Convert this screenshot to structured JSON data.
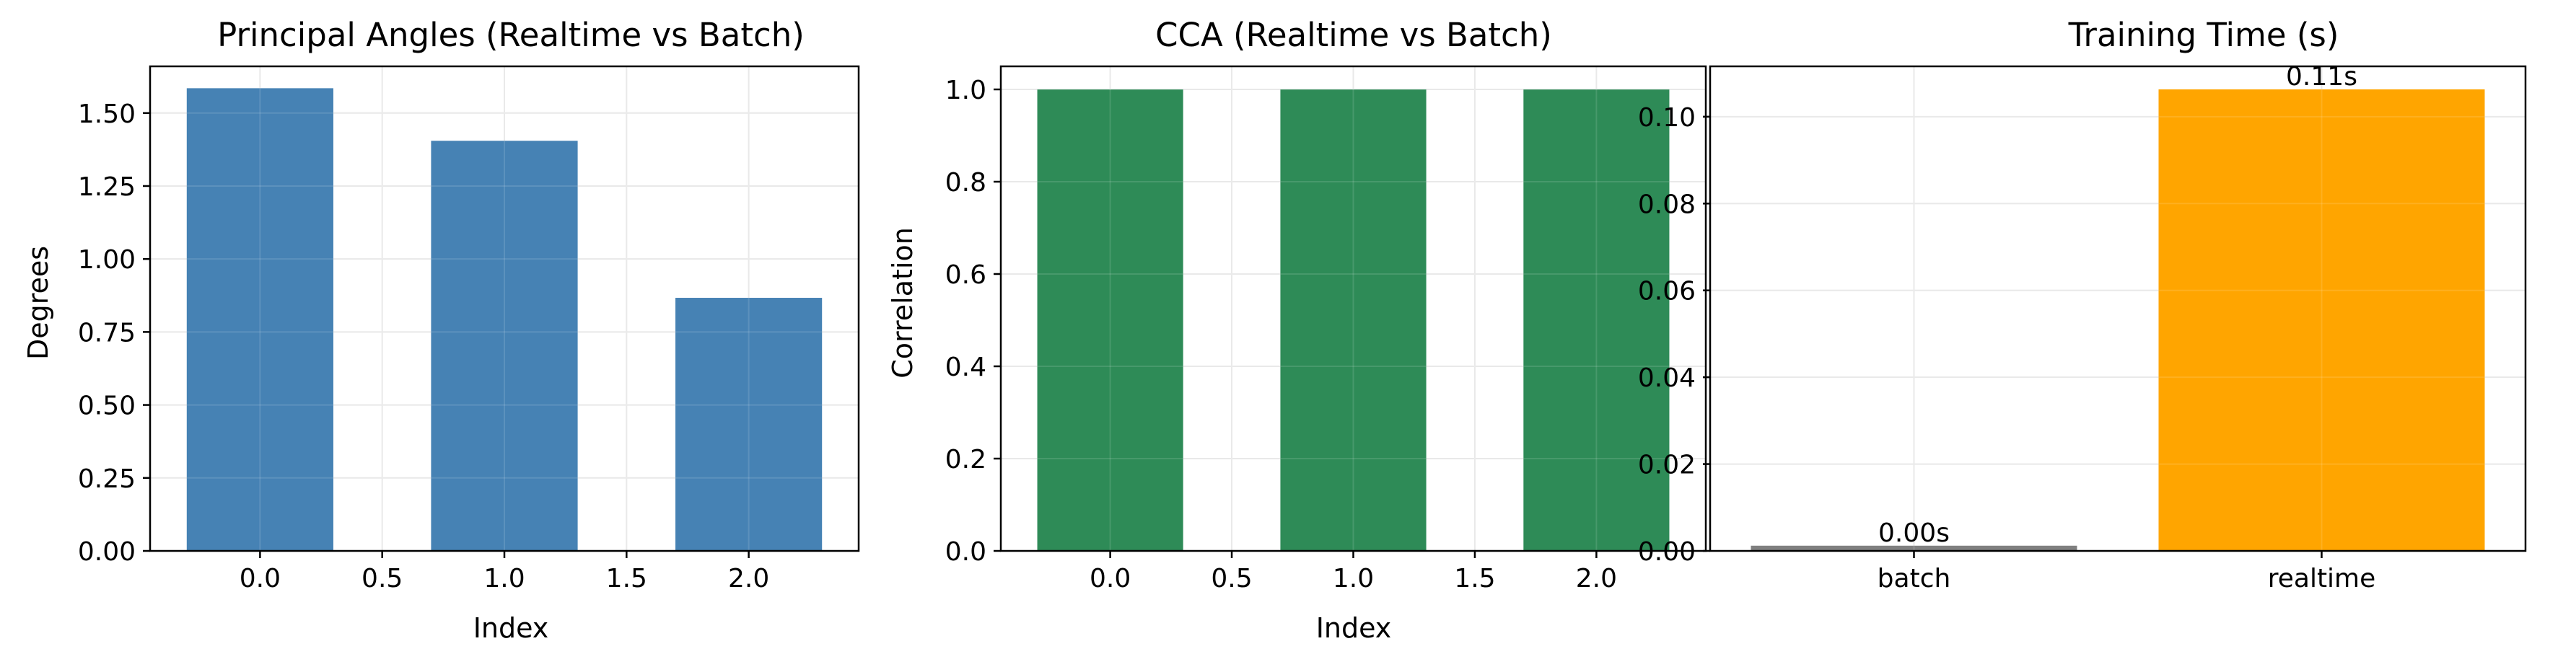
{
  "figure": {
    "background": "#ffffff"
  },
  "chart_data": [
    {
      "type": "bar",
      "title": "Principal Angles (Realtime vs Batch)",
      "xlabel": "Index",
      "ylabel": "Degrees",
      "x": [
        0,
        1,
        2
      ],
      "values": [
        1.585,
        1.405,
        0.867
      ],
      "bar_width": 0.6,
      "color": "#4682b4",
      "xlim": [
        -0.45,
        2.45
      ],
      "ylim": [
        0,
        1.66
      ],
      "xticks": [
        0.0,
        0.5,
        1.0,
        1.5,
        2.0
      ],
      "xtick_labels": [
        "0.0",
        "0.5",
        "1.0",
        "1.5",
        "2.0"
      ],
      "yticks": [
        0.0,
        0.25,
        0.5,
        0.75,
        1.0,
        1.25,
        1.5
      ],
      "ytick_labels": [
        "0.00",
        "0.25",
        "0.50",
        "0.75",
        "1.00",
        "1.25",
        "1.50"
      ],
      "grid": true
    },
    {
      "type": "bar",
      "title": "CCA (Realtime vs Batch)",
      "xlabel": "Index",
      "ylabel": "Correlation",
      "x": [
        0,
        1,
        2
      ],
      "values": [
        1.0,
        1.0,
        1.0
      ],
      "bar_width": 0.6,
      "color": "#2e8b57",
      "xlim": [
        -0.45,
        2.45
      ],
      "ylim": [
        0,
        1.05
      ],
      "xticks": [
        0.0,
        0.5,
        1.0,
        1.5,
        2.0
      ],
      "xtick_labels": [
        "0.0",
        "0.5",
        "1.0",
        "1.5",
        "2.0"
      ],
      "yticks": [
        0.0,
        0.2,
        0.4,
        0.6,
        0.8,
        1.0
      ],
      "ytick_labels": [
        "0.0",
        "0.2",
        "0.4",
        "0.6",
        "0.8",
        "1.0"
      ],
      "grid": true
    },
    {
      "type": "bar",
      "title": "Training Time (s)",
      "xlabel": "",
      "ylabel": "",
      "categories": [
        "batch",
        "realtime"
      ],
      "values": [
        0.0012,
        0.1063
      ],
      "data_labels": [
        "0.00s",
        "0.11s"
      ],
      "colors": [
        "#808080",
        "#ffa500"
      ],
      "bar_width": 0.8,
      "xlim": [
        -0.5,
        1.5
      ],
      "ylim": [
        0,
        0.1116
      ],
      "yticks": [
        0.0,
        0.02,
        0.04,
        0.06,
        0.08,
        0.1
      ],
      "ytick_labels": [
        "0.00",
        "0.02",
        "0.04",
        "0.06",
        "0.08",
        "0.10"
      ],
      "grid": true
    }
  ]
}
